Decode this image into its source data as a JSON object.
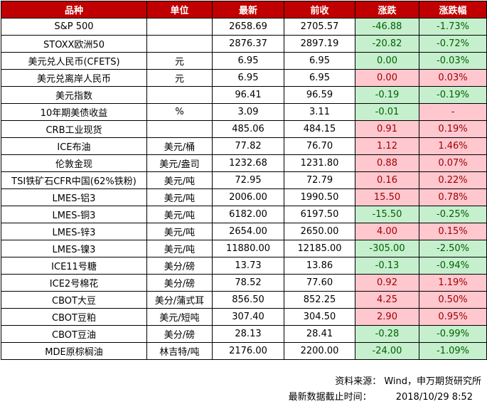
{
  "headers": [
    "品种",
    "单位",
    "最新",
    "前收",
    "涨跌",
    "涨跌幅"
  ],
  "rows": [
    {
      "name": "S&P 500",
      "unit": "",
      "latest": "2658.69",
      "prev": "2705.57",
      "change": "-46.88",
      "pct": "-1.73%",
      "chg_dir": "down",
      "pct_dir": "down"
    },
    {
      "name": "STOXX欧洲50",
      "unit": "",
      "latest": "2876.37",
      "prev": "2897.19",
      "change": "-20.82",
      "pct": "-0.72%",
      "chg_dir": "down",
      "pct_dir": "down"
    },
    {
      "name": "美元兑人民币(CFETS)",
      "unit": "元",
      "latest": "6.95",
      "prev": "6.95",
      "change": "0.00",
      "pct": "-0.03%",
      "chg_dir": "down",
      "pct_dir": "down"
    },
    {
      "name": "美元兑离岸人民币",
      "unit": "元",
      "latest": "6.95",
      "prev": "6.95",
      "change": "0.00",
      "pct": "0.03%",
      "chg_dir": "up",
      "pct_dir": "up"
    },
    {
      "name": "美元指数",
      "unit": "",
      "latest": "96.41",
      "prev": "96.59",
      "change": "-0.19",
      "pct": "-0.19%",
      "chg_dir": "down",
      "pct_dir": "down"
    },
    {
      "name": "10年期美债收益",
      "unit": "%",
      "latest": "3.09",
      "prev": "3.11",
      "change": "-0.01",
      "pct": "-",
      "chg_dir": "down",
      "pct_dir": "up"
    },
    {
      "name": "CRB工业现货",
      "unit": "",
      "latest": "485.06",
      "prev": "484.15",
      "change": "0.91",
      "pct": "0.19%",
      "chg_dir": "up",
      "pct_dir": "up"
    },
    {
      "name": "ICE布油",
      "unit": "美元/桶",
      "latest": "77.82",
      "prev": "76.70",
      "change": "1.12",
      "pct": "1.46%",
      "chg_dir": "up",
      "pct_dir": "up"
    },
    {
      "name": "伦敦金现",
      "unit": "美元/盎司",
      "latest": "1232.68",
      "prev": "1231.80",
      "change": "0.88",
      "pct": "0.07%",
      "chg_dir": "up",
      "pct_dir": "up"
    },
    {
      "name": "TSI铁矿石CFR中国(62%铁粉)",
      "unit": "美元/吨",
      "latest": "72.95",
      "prev": "72.79",
      "change": "0.16",
      "pct": "0.22%",
      "chg_dir": "up",
      "pct_dir": "up"
    },
    {
      "name": "LMES-铝3",
      "unit": "美元/吨",
      "latest": "2006.00",
      "prev": "1990.50",
      "change": "15.50",
      "pct": "0.78%",
      "chg_dir": "up",
      "pct_dir": "up"
    },
    {
      "name": "LMES-铜3",
      "unit": "美元/吨",
      "latest": "6182.00",
      "prev": "6197.50",
      "change": "-15.50",
      "pct": "-0.25%",
      "chg_dir": "down",
      "pct_dir": "down"
    },
    {
      "name": "LMES-锌3",
      "unit": "美元/吨",
      "latest": "2654.00",
      "prev": "2650.00",
      "change": "4.00",
      "pct": "0.15%",
      "chg_dir": "up",
      "pct_dir": "up"
    },
    {
      "name": "LMES-镍3",
      "unit": "美元/吨",
      "latest": "11880.00",
      "prev": "12185.00",
      "change": "-305.00",
      "pct": "-2.50%",
      "chg_dir": "down",
      "pct_dir": "down"
    },
    {
      "name": "ICE11号糖",
      "unit": "美分/磅",
      "latest": "13.73",
      "prev": "13.86",
      "change": "-0.13",
      "pct": "-0.94%",
      "chg_dir": "down",
      "pct_dir": "down"
    },
    {
      "name": "ICE2号棉花",
      "unit": "美分/磅",
      "latest": "78.52",
      "prev": "77.60",
      "change": "0.92",
      "pct": "1.19%",
      "chg_dir": "up",
      "pct_dir": "up"
    },
    {
      "name": "CBOT大豆",
      "unit": "美分/蒲式耳",
      "latest": "856.50",
      "prev": "852.25",
      "change": "4.25",
      "pct": "0.50%",
      "chg_dir": "up",
      "pct_dir": "up"
    },
    {
      "name": "CBOT豆粕",
      "unit": "美元/短吨",
      "latest": "307.40",
      "prev": "304.50",
      "change": "2.90",
      "pct": "0.95%",
      "chg_dir": "up",
      "pct_dir": "up"
    },
    {
      "name": "CBOT豆油",
      "unit": "美分/磅",
      "latest": "28.13",
      "prev": "28.41",
      "change": "-0.28",
      "pct": "-0.99%",
      "chg_dir": "down",
      "pct_dir": "down"
    },
    {
      "name": "MDE原棕榈油",
      "unit": "林吉特/吨",
      "latest": "2176.00",
      "prev": "2200.00",
      "change": "-24.00",
      "pct": "-1.09%",
      "chg_dir": "down",
      "pct_dir": "down"
    }
  ],
  "footer": {
    "source": "资料来源： Wind，申万期货研究所",
    "cutoff_label": "最新数据截止时间：",
    "cutoff_value": "2018/10/29 8:52"
  },
  "colors": {
    "header_bg": "#c00000",
    "up_bg": "#ffc7ce",
    "up_text": "#9c0006",
    "down_bg": "#c6efce",
    "down_text": "#006100"
  }
}
